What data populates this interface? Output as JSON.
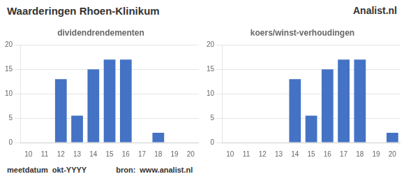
{
  "title": "Waarderingen Rhoen-Klinikum",
  "annotations": [
    "Analist.nl",
    "meetdatum",
    "okt-YYYY",
    "bron:",
    "www.analist.nl"
  ],
  "chart_data": [
    {
      "type": "bar",
      "title": "dividendrendementen",
      "categories": [
        "10",
        "11",
        "12",
        "13",
        "14",
        "15",
        "16",
        "17",
        "18",
        "19",
        "20"
      ],
      "values": [
        0,
        0,
        13,
        5.5,
        15,
        17,
        17,
        0,
        2,
        0,
        0
      ],
      "color": "#4472C4",
      "ylim": [
        0,
        20
      ],
      "yticks": [
        0,
        5,
        10,
        15,
        20
      ],
      "grid": true
    },
    {
      "type": "bar",
      "title": "koers/winst-verhoudingen",
      "categories": [
        "10",
        "11",
        "12",
        "13",
        "14",
        "15",
        "16",
        "17",
        "18",
        "19",
        "20"
      ],
      "values": [
        0,
        0,
        0,
        0,
        13,
        5.5,
        15,
        17,
        17,
        0,
        2
      ],
      "color": "#4472C4",
      "ylim": [
        0,
        20
      ],
      "yticks": [
        0,
        5,
        10,
        15,
        20
      ],
      "grid": true
    }
  ]
}
